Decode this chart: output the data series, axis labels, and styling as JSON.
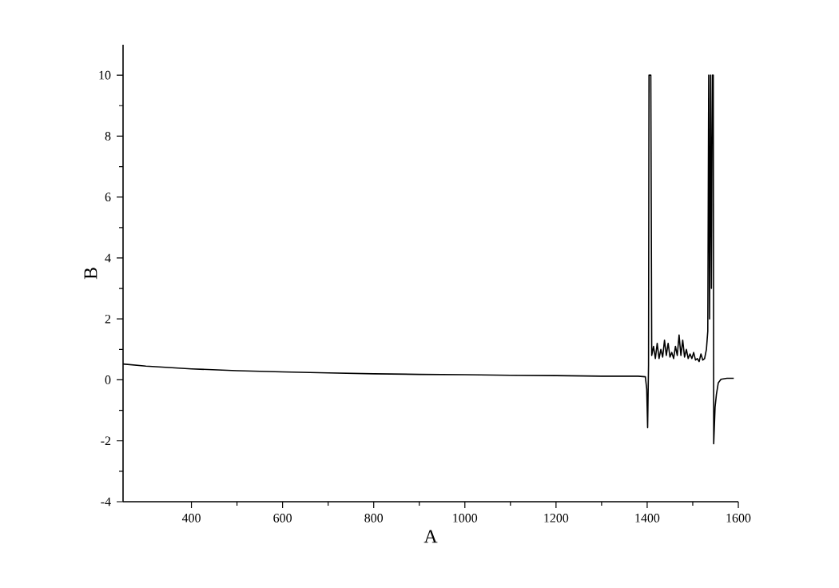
{
  "chart_data": {
    "type": "line",
    "xlabel": "A",
    "ylabel": "B",
    "color": "#000000",
    "xlim": [
      250,
      1600
    ],
    "ylim": [
      -4,
      11
    ],
    "xticks": [
      400,
      600,
      800,
      1000,
      1200,
      1400,
      1600
    ],
    "yticks": [
      -4,
      -2,
      0,
      2,
      4,
      6,
      8,
      10
    ],
    "x": [
      250,
      300,
      400,
      500,
      600,
      700,
      800,
      900,
      1000,
      1100,
      1200,
      1300,
      1380,
      1396,
      1399,
      1401,
      1403,
      1404,
      1408,
      1410,
      1414,
      1418,
      1422,
      1426,
      1430,
      1434,
      1438,
      1442,
      1446,
      1450,
      1454,
      1458,
      1462,
      1466,
      1470,
      1474,
      1478,
      1482,
      1486,
      1490,
      1494,
      1498,
      1502,
      1506,
      1510,
      1514,
      1518,
      1522,
      1526,
      1530,
      1533,
      1535,
      1537,
      1539,
      1541,
      1543,
      1545,
      1546,
      1549,
      1552,
      1556,
      1562,
      1575,
      1590
    ],
    "values": [
      0.52,
      0.45,
      0.36,
      0.3,
      0.26,
      0.23,
      0.2,
      0.18,
      0.17,
      0.15,
      0.14,
      0.12,
      0.12,
      0.1,
      -0.3,
      -1.57,
      0.5,
      10,
      10,
      0.8,
      1.1,
      0.7,
      1.2,
      0.7,
      1.0,
      0.75,
      1.3,
      0.8,
      1.2,
      0.75,
      0.9,
      0.7,
      1.1,
      0.8,
      1.47,
      0.8,
      1.3,
      0.75,
      1.0,
      0.7,
      0.85,
      0.7,
      0.9,
      0.65,
      0.7,
      0.6,
      0.85,
      0.65,
      0.7,
      1.0,
      1.6,
      10,
      2,
      10,
      3,
      10,
      10,
      -2.1,
      -0.9,
      -0.47,
      -0.1,
      0.02,
      0.05,
      0.05
    ]
  }
}
